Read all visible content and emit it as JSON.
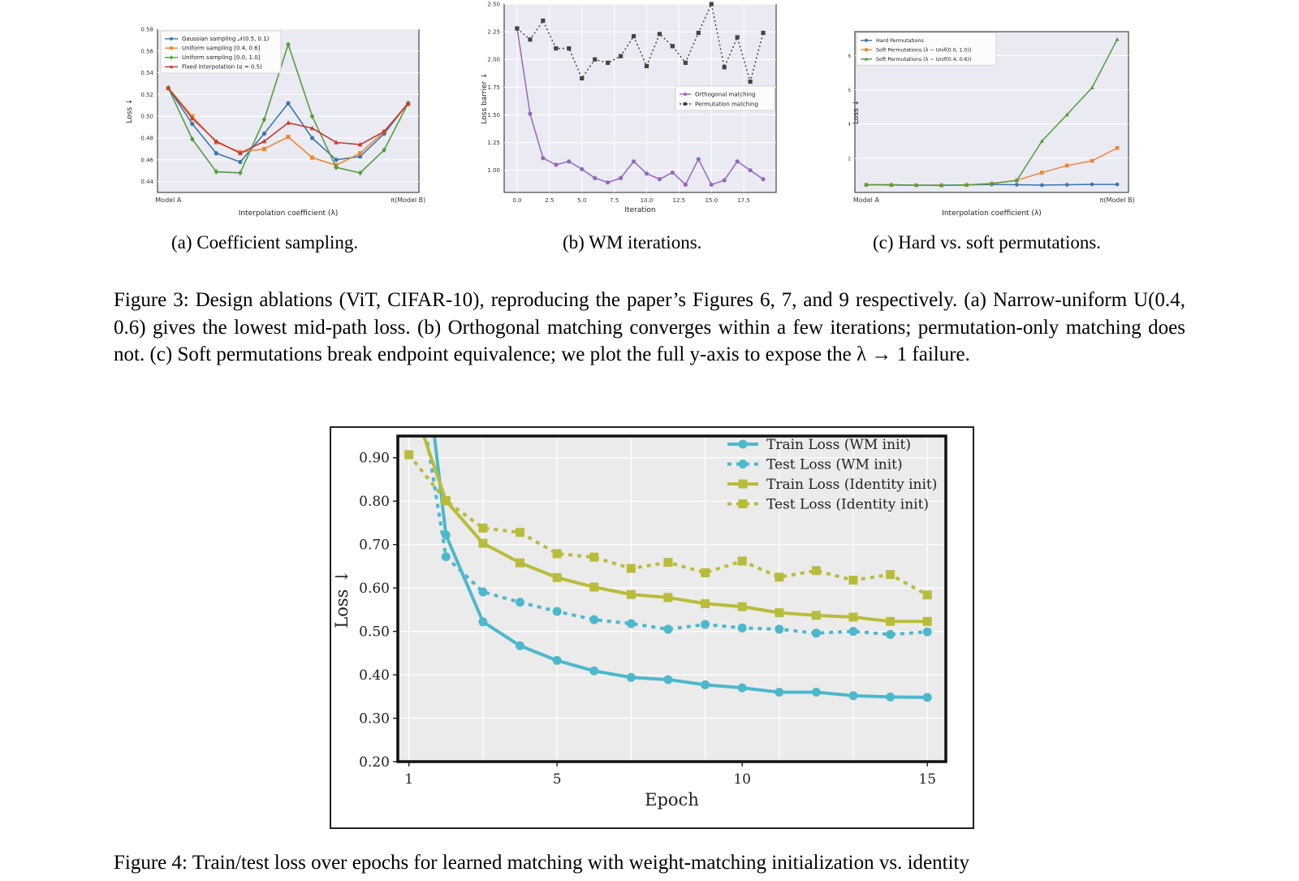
{
  "panel_a": {
    "subcaption": "(a) Coefficient sampling.",
    "chart_data": {
      "type": "line",
      "xlabel": "Interpolation coefficient (λ)",
      "ylabel": "Loss ↓",
      "x_tick_labels": [
        "Model A",
        "π(Model B)"
      ],
      "x": [
        0,
        0.1,
        0.2,
        0.3,
        0.4,
        0.5,
        0.6,
        0.7,
        0.8,
        0.9,
        1.0
      ],
      "ylim": [
        0.43,
        0.58
      ],
      "yticks": [
        "0.44",
        "0.46",
        "0.48",
        "0.50",
        "0.52",
        "0.54",
        "0.56",
        "0.58"
      ],
      "legend_position": "top-left",
      "series": [
        {
          "name": "Gaussian sampling 𝒩(0.5, 0.1)",
          "color": "#3b75af",
          "marker": "circle",
          "values": [
            0.526,
            0.493,
            0.466,
            0.458,
            0.484,
            0.512,
            0.48,
            0.46,
            0.463,
            0.484,
            0.512
          ]
        },
        {
          "name": "Uniform sampling [0.4, 0.6]",
          "color": "#ef8636",
          "marker": "square",
          "values": [
            0.526,
            0.5,
            0.476,
            0.467,
            0.47,
            0.481,
            0.462,
            0.455,
            0.466,
            0.486,
            0.511
          ]
        },
        {
          "name": "Uniform sampling [0.0, 1.0]",
          "color": "#519e3e",
          "marker": "diamond",
          "values": [
            0.526,
            0.479,
            0.449,
            0.448,
            0.497,
            0.566,
            0.5,
            0.453,
            0.448,
            0.469,
            0.512
          ]
        },
        {
          "name": "Fixed interpolation (α = 0.5)",
          "color": "#c53a32",
          "marker": "triangle",
          "values": [
            0.526,
            0.498,
            0.477,
            0.466,
            0.477,
            0.494,
            0.489,
            0.476,
            0.474,
            0.486,
            0.512
          ]
        }
      ]
    }
  },
  "panel_b": {
    "subcaption": "(b) WM iterations.",
    "chart_data": {
      "type": "line",
      "xlabel": "Iteration",
      "ylabel": "Loss barrier ↓",
      "xlim": [
        -1,
        20
      ],
      "xticks": [
        "0.0",
        "2.5",
        "5.0",
        "7.5",
        "10.0",
        "12.5",
        "15.0",
        "17.5"
      ],
      "ylim": [
        0.8,
        2.5
      ],
      "yticks": [
        "1.00",
        "1.25",
        "1.50",
        "1.75",
        "2.00",
        "2.25",
        "2.50"
      ],
      "x": [
        0,
        1,
        2,
        3,
        4,
        5,
        6,
        7,
        8,
        9,
        10,
        11,
        12,
        13,
        14,
        15,
        16,
        17,
        18,
        19
      ],
      "legend_position": "center-right",
      "series": [
        {
          "name": "Orthogonal matching",
          "color": "#9467bd",
          "marker": "circle",
          "values": [
            2.28,
            1.51,
            1.11,
            1.05,
            1.08,
            1.01,
            0.93,
            0.89,
            0.93,
            1.08,
            0.97,
            0.92,
            0.98,
            0.87,
            1.1,
            0.87,
            0.91,
            1.08,
            1.0,
            0.92
          ]
        },
        {
          "name": "Permutation matching",
          "color": "#444444",
          "marker": "square",
          "values": [
            2.28,
            2.18,
            2.35,
            2.1,
            2.1,
            1.83,
            2.0,
            1.97,
            2.03,
            2.21,
            1.94,
            2.23,
            2.12,
            1.97,
            2.24,
            2.5,
            1.93,
            2.2,
            1.8,
            2.24
          ]
        }
      ]
    }
  },
  "panel_c": {
    "subcaption": "(c) Hard vs. soft permutations.",
    "chart_data": {
      "type": "line",
      "xlabel": "Interpolation coefficient (λ)",
      "ylabel": "Loss ↓",
      "x_tick_labels": [
        "Model A",
        "π(Model B)"
      ],
      "x": [
        0,
        0.1,
        0.2,
        0.3,
        0.4,
        0.5,
        0.6,
        0.7,
        0.8,
        0.9,
        1.0
      ],
      "ylim": [
        0,
        9.4
      ],
      "yticks": [
        "2",
        "4",
        "6",
        "8"
      ],
      "legend_position": "top-left",
      "series": [
        {
          "name": "Hard Permutations",
          "color": "#3b75af",
          "marker": "circle",
          "values": [
            0.45,
            0.45,
            0.42,
            0.43,
            0.44,
            0.46,
            0.45,
            0.43,
            0.45,
            0.47,
            0.47
          ]
        },
        {
          "name": "Soft Permutations (λ ∼ Unif(0.0, 1.0))",
          "color": "#ef8636",
          "marker": "square",
          "values": [
            0.45,
            0.43,
            0.42,
            0.41,
            0.43,
            0.52,
            0.71,
            1.16,
            1.57,
            1.85,
            2.6
          ]
        },
        {
          "name": "Soft Permutations (λ ∼ Unif(0.4, 0.6))",
          "color": "#519e3e",
          "marker": "triangle",
          "values": [
            0.45,
            0.44,
            0.42,
            0.41,
            0.44,
            0.52,
            0.7,
            3.0,
            4.55,
            6.13,
            8.95
          ]
        }
      ]
    }
  },
  "figure3_caption": "Figure 3: Design ablations (ViT, CIFAR-10), reproducing the paper’s Figures 6, 7, and 9 respectively. (a) Narrow-uniform U(0.4, 0.6) gives the lowest mid-path loss. (b) Orthogonal matching converges within a few iterations; permutation-only matching does not. (c) Soft permutations break endpoint equivalence; we plot the full y-axis to expose the λ → 1 failure.",
  "figure4": {
    "chart_data": {
      "type": "line",
      "xlabel": "Epoch",
      "ylabel": "Loss ↓",
      "xlim": [
        0.7,
        15.5
      ],
      "xticks": [
        "1",
        "5",
        "10",
        "15"
      ],
      "ylim": [
        0.2,
        0.95
      ],
      "yticks": [
        "0.20",
        "0.30",
        "0.40",
        "0.50",
        "0.60",
        "0.70",
        "0.80",
        "0.90"
      ],
      "x": [
        1,
        2,
        3,
        4,
        5,
        6,
        7,
        8,
        9,
        10,
        11,
        12,
        13,
        14,
        15
      ],
      "legend_position": "top-right",
      "series": [
        {
          "name": "Train Loss (WM init)",
          "color": "#4db8cc",
          "style": "solid",
          "marker": "circle",
          "values": [
            1.45,
            0.722,
            0.522,
            0.467,
            0.433,
            0.409,
            0.394,
            0.389,
            0.377,
            0.37,
            0.36,
            0.36,
            0.352,
            0.349,
            0.348
          ]
        },
        {
          "name": "Test Loss (WM init)",
          "color": "#4db8cc",
          "style": "dotted",
          "marker": "circle",
          "values": [
            1.2,
            0.672,
            0.591,
            0.567,
            0.546,
            0.527,
            0.518,
            0.505,
            0.516,
            0.508,
            0.505,
            0.496,
            0.5,
            0.493,
            0.499
          ]
        },
        {
          "name": "Train Loss (Identity init)",
          "color": "#b9bc3a",
          "style": "solid",
          "marker": "square",
          "values": [
            1.05,
            0.801,
            0.703,
            0.658,
            0.624,
            0.602,
            0.585,
            0.578,
            0.564,
            0.557,
            0.543,
            0.537,
            0.533,
            0.523,
            0.523
          ]
        },
        {
          "name": "Test Loss (Identity init)",
          "color": "#b9bc3a",
          "style": "dotted",
          "marker": "square",
          "values": [
            0.907,
            0.801,
            0.738,
            0.728,
            0.679,
            0.671,
            0.645,
            0.659,
            0.635,
            0.662,
            0.625,
            0.64,
            0.618,
            0.631,
            0.584
          ]
        }
      ]
    }
  },
  "figure4_caption": "Figure 4: Train/test loss over epochs for learned matching with weight-matching initialization vs. identity"
}
